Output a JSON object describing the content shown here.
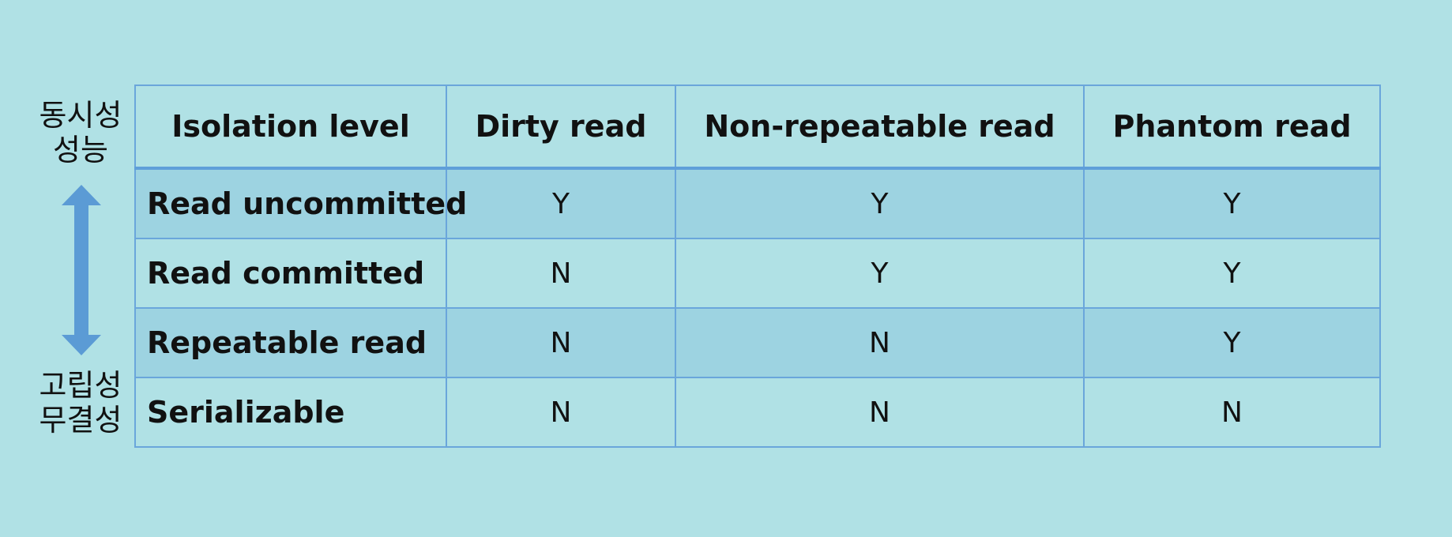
{
  "side_labels": {
    "top": [
      "동시성",
      "성능"
    ],
    "bottom": [
      "고립성",
      "무결성"
    ]
  },
  "arrow": {
    "icon": "double-headed-vertical-arrow",
    "color": "#5b9bd5"
  },
  "table": {
    "columns": [
      "Isolation level",
      "Dirty read",
      "Non-repeatable read",
      "Phantom read"
    ],
    "rows": [
      {
        "level": "Read uncommitted",
        "dirty": "Y",
        "nonrepeatable": "Y",
        "phantom": "Y"
      },
      {
        "level": "Read committed",
        "dirty": "N",
        "nonrepeatable": "Y",
        "phantom": "Y"
      },
      {
        "level": "Repeatable read",
        "dirty": "N",
        "nonrepeatable": "N",
        "phantom": "Y"
      },
      {
        "level": "Serializable",
        "dirty": "N",
        "nonrepeatable": "N",
        "phantom": "N"
      }
    ]
  },
  "colors": {
    "background": "#b0e1e5",
    "shaded_row": "#9dd3e1",
    "border": "#6aa6db"
  }
}
